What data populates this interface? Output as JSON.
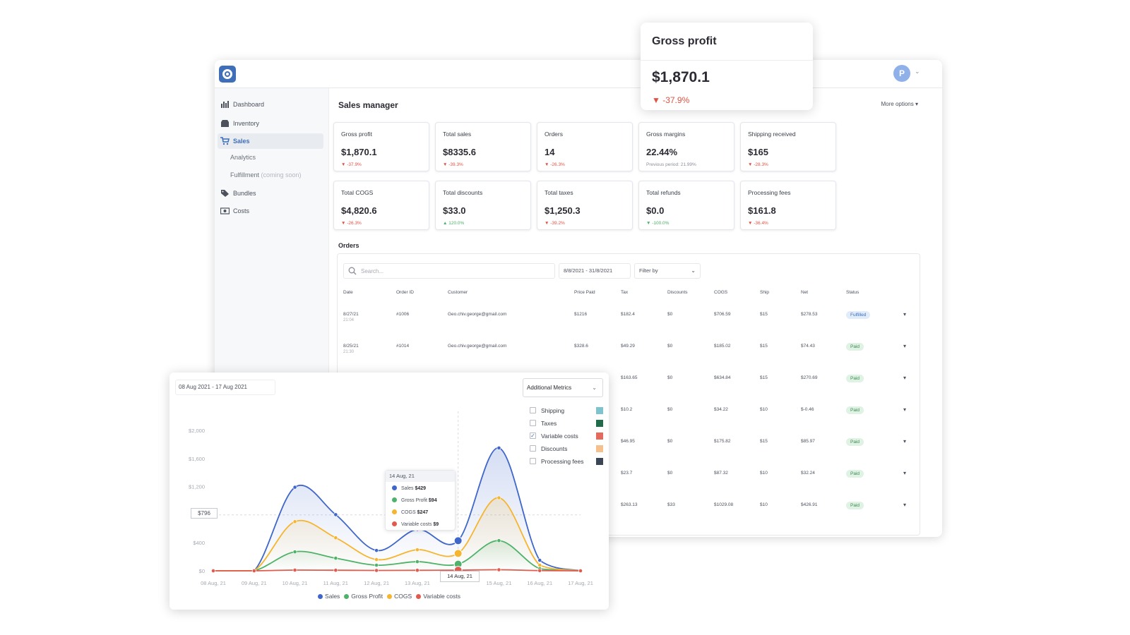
{
  "app": {
    "avatar_initial": "P",
    "sidebar": {
      "items": [
        {
          "label": "Dashboard"
        },
        {
          "label": "Inventory"
        },
        {
          "label": "Sales"
        },
        {
          "label": "Bundles"
        },
        {
          "label": "Costs"
        }
      ],
      "sub_items": [
        {
          "label": "Analytics"
        },
        {
          "label": "Fulfillment",
          "note": "(coming soon)"
        }
      ],
      "active": "Sales"
    },
    "page_title": "Sales manager",
    "more_options": "More options",
    "cards": [
      {
        "label": "Gross profit",
        "value": "$1,870.1",
        "change": "▼ -37.9%",
        "dir": "down"
      },
      {
        "label": "Total sales",
        "value": "$8335.6",
        "change": "▼ -39.3%",
        "dir": "down"
      },
      {
        "label": "Orders",
        "value": "14",
        "change": "▼ -26.3%",
        "dir": "down"
      },
      {
        "label": "Gross margins",
        "value": "22.44%",
        "change": "Previous period: 21.99%",
        "dir": "note"
      },
      {
        "label": "Shipping received",
        "value": "$165",
        "change": "▼ -28.3%",
        "dir": "down"
      },
      {
        "label": "Total COGS",
        "value": "$4,820.6",
        "change": "▼ -26.3%",
        "dir": "down"
      },
      {
        "label": "Total discounts",
        "value": "$33.0",
        "change": "▲ 120.0%",
        "dir": "up"
      },
      {
        "label": "Total taxes",
        "value": "$1,250.3",
        "change": "▼ -39.2%",
        "dir": "down"
      },
      {
        "label": "Total refunds",
        "value": "$0.0",
        "change": "▼ -100.0%",
        "dir": "up"
      },
      {
        "label": "Processing fees",
        "value": "$161.8",
        "change": "▼ -36.4%",
        "dir": "down"
      }
    ],
    "orders": {
      "title": "Orders",
      "search_placeholder": "Search...",
      "date_range": "8/8/2021 - 31/8/2021",
      "filter_label": "Filter by",
      "columns": [
        "Date",
        "Order ID",
        "Customer",
        "Price Paid",
        "Tax",
        "Discounts",
        "COGS",
        "Ship",
        "Net",
        "Status"
      ],
      "rows": [
        {
          "date": "8/27/21",
          "time": "21:04",
          "order_id": "#1006",
          "customer": "Geo.chiv.george@gmail.com",
          "price": "$1216",
          "tax": "$182.4",
          "discounts": "$0",
          "cogs": "$706.59",
          "ship": "$15",
          "net": "$278.53",
          "status": "Fulfilled"
        },
        {
          "date": "8/25/21",
          "time": "21:30",
          "order_id": "#1014",
          "customer": "Geo.chiv.george@gmail.com",
          "price": "$328.6",
          "tax": "$49.29",
          "discounts": "$0",
          "cogs": "$185.02",
          "ship": "$15",
          "net": "$74.43",
          "status": "Paid"
        },
        {
          "date": "",
          "time": "",
          "order_id": "",
          "customer": "",
          "price": "",
          "tax": "$163.65",
          "discounts": "$0",
          "cogs": "$634.84",
          "ship": "$15",
          "net": "$270.69",
          "status": "Paid"
        },
        {
          "date": "",
          "time": "",
          "order_id": "",
          "customer": "",
          "price": "",
          "tax": "$10.2",
          "discounts": "$0",
          "cogs": "$34.22",
          "ship": "$10",
          "net": "$-0.46",
          "status": "Paid"
        },
        {
          "date": "",
          "time": "",
          "order_id": "",
          "customer": "",
          "price": "",
          "tax": "$46.95",
          "discounts": "$0",
          "cogs": "$175.82",
          "ship": "$15",
          "net": "$85.97",
          "status": "Paid"
        },
        {
          "date": "",
          "time": "",
          "order_id": "",
          "customer": "",
          "price": "",
          "tax": "$23.7",
          "discounts": "$0",
          "cogs": "$87.32",
          "ship": "$10",
          "net": "$32.24",
          "status": "Paid"
        },
        {
          "date": "",
          "time": "",
          "order_id": "",
          "customer": "",
          "price": "",
          "tax": "$263.13",
          "discounts": "$33",
          "cogs": "$1029.08",
          "ship": "$10",
          "net": "$426.91",
          "status": "Paid"
        }
      ]
    }
  },
  "gross_profit_popup": {
    "label": "Gross profit",
    "value": "$1,870.1",
    "change": "▼ -37.9%"
  },
  "chart_popup": {
    "date_range": "08 Aug 2021 - 17 Aug 2021",
    "additional_metrics_label": "Additional Metrics",
    "metrics": [
      {
        "label": "Shipping",
        "checked": false,
        "color": "#7ec4cf"
      },
      {
        "label": "Taxes",
        "checked": false,
        "color": "#1f6b4a"
      },
      {
        "label": "Variable costs",
        "checked": true,
        "color": "#e36a5c"
      },
      {
        "label": "Discounts",
        "checked": false,
        "color": "#f5c08c"
      },
      {
        "label": "Processing fees",
        "checked": false,
        "color": "#3a4556"
      }
    ],
    "tooltip": {
      "date": "14 Aug, 21",
      "rows": [
        {
          "label": "Sales",
          "value": "$429",
          "color": "#3f66c9"
        },
        {
          "label": "Gross Profit",
          "value": "$94",
          "color": "#4fb26a"
        },
        {
          "label": "COGS",
          "value": "$247",
          "color": "#f5b52e"
        },
        {
          "label": "Variable costs",
          "value": "$9",
          "color": "#e05a4e"
        }
      ]
    },
    "crosshair_y_label": "$796",
    "highlighted_x_label": "14 Aug, 21"
  },
  "chart_data": {
    "type": "line",
    "title": "",
    "xlabel": "",
    "ylabel": "",
    "categories": [
      "08 Aug, 21",
      "09 Aug, 21",
      "10 Aug, 21",
      "11 Aug, 21",
      "12 Aug, 21",
      "13 Aug, 21",
      "14 Aug, 21",
      "15 Aug, 21",
      "16 Aug, 21",
      "17 Aug, 21"
    ],
    "y_ticks": [
      "$0",
      "$400",
      "$796",
      "$1,200",
      "$1,600",
      "$2,000"
    ],
    "ylim": [
      0,
      2000
    ],
    "legend_position": "bottom",
    "series": [
      {
        "name": "Sales",
        "color": "#3f66c9",
        "values": [
          0,
          0,
          1190,
          800,
          290,
          590,
          429,
          1750,
          150,
          0
        ]
      },
      {
        "name": "Gross Profit",
        "color": "#4fb26a",
        "values": [
          0,
          0,
          270,
          180,
          80,
          130,
          94,
          430,
          30,
          0
        ]
      },
      {
        "name": "COGS",
        "color": "#f5b52e",
        "values": [
          0,
          0,
          700,
          470,
          160,
          300,
          247,
          1040,
          80,
          0
        ]
      },
      {
        "name": "Variable costs",
        "color": "#e05a4e",
        "values": [
          0,
          0,
          10,
          8,
          5,
          7,
          9,
          15,
          3,
          0
        ]
      }
    ]
  }
}
